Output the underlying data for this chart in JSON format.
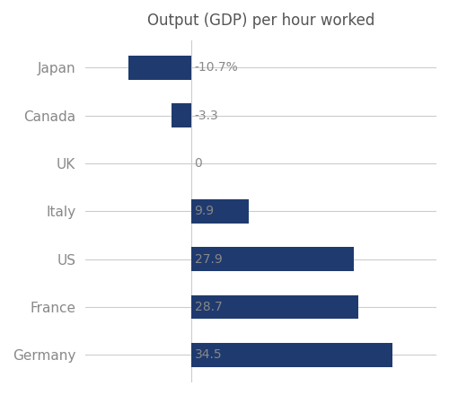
{
  "title": "Output (GDP) per hour worked",
  "categories": [
    "Japan",
    "Canada",
    "UK",
    "Italy",
    "US",
    "France",
    "Germany"
  ],
  "values": [
    -10.7,
    -3.3,
    0,
    9.9,
    27.9,
    28.7,
    34.5
  ],
  "labels": [
    "-10.7%",
    "-3.3",
    "0",
    "9.9",
    "27.9",
    "28.7",
    "34.5"
  ],
  "bar_color": "#1f3a6e",
  "background_color": "#ffffff",
  "title_color": "#555555",
  "label_color": "#888888",
  "tick_label_color": "#888888",
  "grid_color": "#cccccc",
  "title_fontsize": 12,
  "label_fontsize": 10,
  "tick_fontsize": 11,
  "xlim": [
    -18,
    42
  ],
  "bar_height": 0.5,
  "figsize": [
    5.0,
    4.4
  ],
  "dpi": 100
}
